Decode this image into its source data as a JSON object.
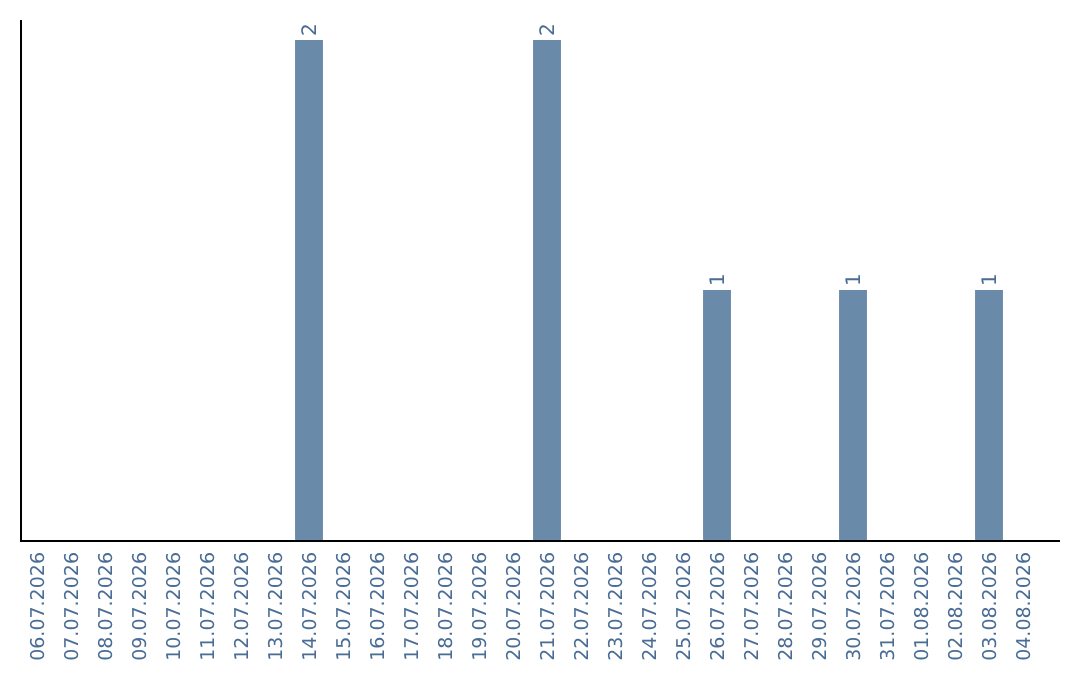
{
  "chart_data": {
    "type": "bar",
    "categories": [
      "06.07.2026",
      "07.07.2026",
      "08.07.2026",
      "09.07.2026",
      "10.07.2026",
      "11.07.2026",
      "12.07.2026",
      "13.07.2026",
      "14.07.2026",
      "15.07.2026",
      "16.07.2026",
      "17.07.2026",
      "18.07.2026",
      "19.07.2026",
      "20.07.2026",
      "21.07.2026",
      "22.07.2026",
      "23.07.2026",
      "24.07.2026",
      "25.07.2026",
      "26.07.2026",
      "27.07.2026",
      "28.07.2026",
      "29.07.2026",
      "30.07.2026",
      "31.07.2026",
      "01.08.2026",
      "02.08.2026",
      "03.08.2026",
      "04.08.2026"
    ],
    "values": [
      0,
      0,
      0,
      0,
      0,
      0,
      0,
      0,
      2,
      0,
      0,
      0,
      0,
      0,
      0,
      2,
      0,
      0,
      0,
      0,
      1,
      0,
      0,
      0,
      1,
      0,
      0,
      0,
      1,
      0
    ],
    "value_labels": [
      null,
      null,
      null,
      null,
      null,
      null,
      null,
      null,
      "2",
      null,
      null,
      null,
      null,
      null,
      null,
      "2",
      null,
      null,
      null,
      null,
      "1",
      null,
      null,
      null,
      "1",
      null,
      null,
      null,
      "1",
      null
    ],
    "color": "#6a8aaa",
    "ylim": [
      0,
      2
    ],
    "tick_labels": "x"
  }
}
